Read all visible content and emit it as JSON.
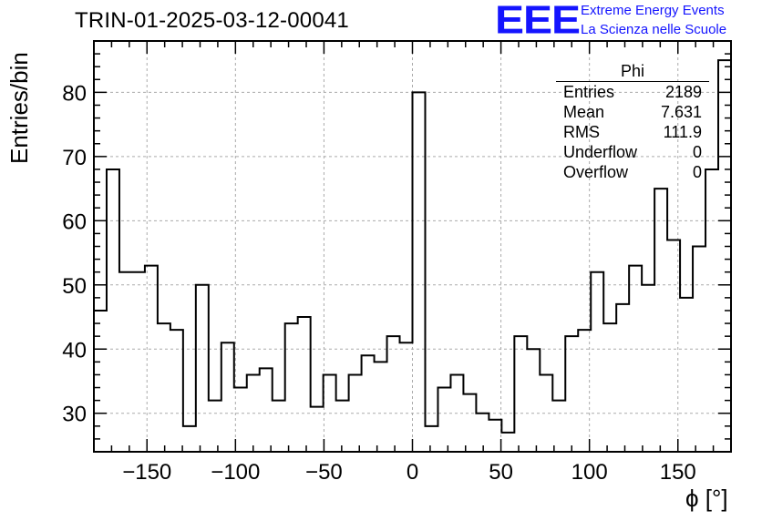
{
  "header": {
    "title": "TRIN-01-2025-03-12-00041"
  },
  "logo": {
    "mark": "EEE",
    "line1": "Extreme Energy Events",
    "line2": "La Scienza nelle Scuole",
    "color": "#1414ff"
  },
  "stats_box": {
    "title": "Phi",
    "rows": [
      {
        "key": "Entries",
        "value": "2189"
      },
      {
        "key": "Mean",
        "value": "7.631"
      },
      {
        "key": "RMS",
        "value": "111.9"
      },
      {
        "key": "Underflow",
        "value": "0"
      },
      {
        "key": "Overflow",
        "value": "0"
      }
    ]
  },
  "chart_data": {
    "type": "bar",
    "style": "step-histogram",
    "title": "TRIN-01-2025-03-12-00041",
    "xlabel": "ϕ [°]",
    "ylabel": "Entries/bin",
    "xlim": [
      -180,
      180
    ],
    "ylim": [
      24,
      88
    ],
    "bin_width": 7.2,
    "bin_edges_start": -180,
    "grid": true,
    "grid_style": "dashed",
    "x_ticks": [
      -150,
      -100,
      -50,
      0,
      50,
      100,
      150
    ],
    "x_tick_labels": [
      "−150",
      "−100",
      "−50",
      "0",
      "50",
      "100",
      "150"
    ],
    "y_ticks": [
      30,
      40,
      50,
      60,
      70,
      80
    ],
    "y_tick_labels": [
      "30",
      "40",
      "50",
      "60",
      "70",
      "80"
    ],
    "line_color": "#000000",
    "values": [
      46,
      68,
      52,
      52,
      53,
      44,
      43,
      28,
      50,
      32,
      41,
      34,
      36,
      37,
      32,
      44,
      45,
      31,
      36,
      32,
      36,
      39,
      38,
      42,
      41,
      80,
      28,
      34,
      36,
      33,
      30,
      29,
      27,
      42,
      40,
      36,
      32,
      42,
      43,
      52,
      44,
      47,
      53,
      50,
      65,
      57,
      48,
      56,
      68,
      85
    ]
  }
}
